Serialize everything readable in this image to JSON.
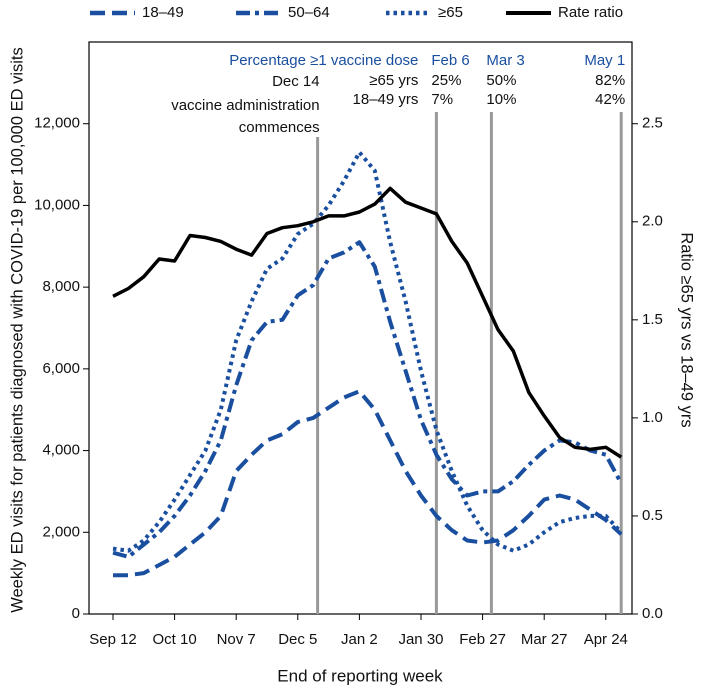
{
  "chart_data": {
    "type": "line",
    "x_label": "End of reporting week",
    "y_label": "Weekly ED visits for patients diagnosed with COVID-19 per 100,000 ED visits",
    "y2_label": "Ratio ≥65 yrs vs 18–49 yrs",
    "categories": [
      "Sep 12",
      null,
      null,
      null,
      "Oct 10",
      null,
      null,
      null,
      "Nov 7",
      null,
      null,
      null,
      "Dec 5",
      null,
      null,
      null,
      "Jan 2",
      null,
      null,
      null,
      "Jan 30",
      null,
      null,
      null,
      "Feb 27",
      null,
      null,
      null,
      "Mar 27",
      null,
      null,
      null,
      "Apr 24",
      null
    ],
    "ylim": [
      0,
      14000
    ],
    "yticks": [
      0,
      {
        "value": 2000,
        "label": "2,000"
      },
      {
        "value": 4000,
        "label": "4,000"
      },
      {
        "value": 6000,
        "label": "6,000"
      },
      {
        "value": 8000,
        "label": "8,000"
      },
      {
        "value": 10000,
        "label": "10,000"
      },
      {
        "value": 12000,
        "label": "12,000"
      }
    ],
    "y2lim": [
      0,
      2.9167
    ],
    "y2ticks": [
      {
        "value": 0,
        "label": "0.0"
      },
      0.5,
      {
        "value": 1,
        "label": "1.0"
      },
      1.5,
      {
        "value": 2,
        "label": "2.0"
      },
      2.5
    ],
    "legend": "top",
    "series": [
      {
        "name": "18–49",
        "color": "#1a4fa0",
        "dash": "dashed",
        "values": [
          950,
          950,
          1000,
          1200,
          1400,
          1700,
          2000,
          2400,
          3500,
          3900,
          4250,
          4400,
          4700,
          4800,
          5050,
          5300,
          5450,
          5000,
          4250,
          3500,
          2900,
          2400,
          2050,
          1800,
          1750,
          1800,
          2050,
          2400,
          2800,
          2900,
          2800,
          2550,
          2300,
          1950
        ]
      },
      {
        "name": "50–64",
        "color": "#1a4fa0",
        "dash": "dashdot",
        "values": [
          1500,
          1400,
          1700,
          2000,
          2400,
          2900,
          3500,
          4250,
          5600,
          6700,
          7150,
          7200,
          7800,
          8050,
          8700,
          8850,
          9100,
          8500,
          7150,
          5950,
          4750,
          3900,
          3300,
          2900,
          3000,
          3000,
          3250,
          3650,
          4000,
          4250,
          4200,
          4000,
          3900,
          3200
        ]
      },
      {
        "name": "≥65",
        "color": "#1a4fa0",
        "dash": "dotted",
        "values": [
          1600,
          1550,
          1800,
          2250,
          2800,
          3400,
          4000,
          5000,
          6700,
          7650,
          8450,
          8700,
          9300,
          9550,
          10000,
          10600,
          11300,
          10850,
          9100,
          7650,
          5950,
          4500,
          3500,
          2650,
          2050,
          1700,
          1550,
          1700,
          2000,
          2250,
          2350,
          2400,
          2400,
          2000
        ]
      },
      {
        "name": "Rate ratio",
        "color": "#000000",
        "dash": "solid",
        "axis": "y2",
        "values": [
          1.62,
          1.66,
          1.72,
          1.81,
          1.8,
          1.93,
          1.92,
          1.9,
          1.86,
          1.83,
          1.94,
          1.97,
          1.98,
          2.0,
          2.03,
          2.03,
          2.05,
          2.09,
          2.17,
          2.1,
          2.07,
          2.04,
          1.9,
          1.79,
          1.62,
          1.45,
          1.34,
          1.13,
          1.01,
          0.9,
          0.85,
          0.84,
          0.85,
          0.8
        ]
      }
    ],
    "start_note": {
      "date": "Dec 14",
      "lines": [
        "vaccine administration",
        "commences"
      ]
    },
    "vaccine_table": {
      "title": "Percentage ≥1 vaccine dose",
      "row_labels": [
        "≥65 yrs",
        "18–49 yrs"
      ],
      "columns": [
        {
          "date": "Feb 6",
          "values": [
            "25%",
            "7%"
          ]
        },
        {
          "date": "Mar 3",
          "values": [
            "50%",
            "10%"
          ]
        },
        {
          "date": "May 1",
          "values": [
            "82%",
            "42%"
          ]
        }
      ]
    }
  }
}
